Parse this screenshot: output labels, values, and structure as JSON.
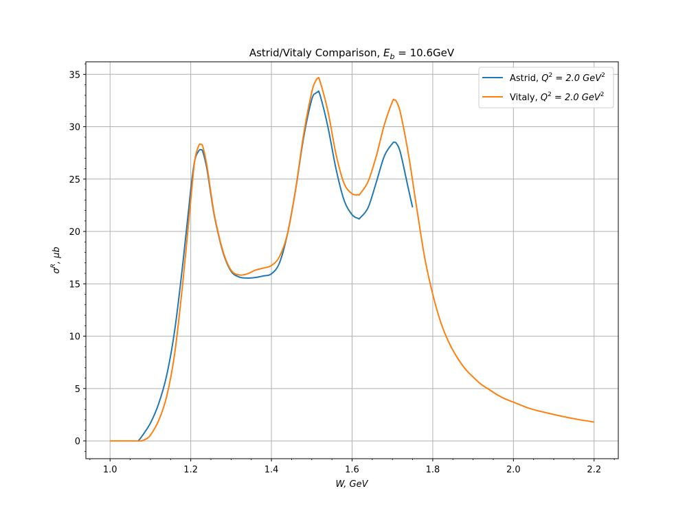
{
  "chart_data": {
    "type": "line",
    "title_main": "Astrid/Vitaly Comparison, ",
    "title_math": "E",
    "title_sub": "b",
    "title_tail": " = 10.6GeV",
    "xlabel": "W, GeV",
    "ylabel": "σ",
    "ylabel_sup": "R",
    "ylabel_tail": ", μb",
    "xlim": [
      0.94,
      2.26
    ],
    "ylim": [
      -1.7,
      36.2
    ],
    "grid": true,
    "legend_position": "top-right",
    "x_ticks": [
      1.0,
      1.2,
      1.4,
      1.6,
      1.8,
      2.0,
      2.2
    ],
    "x_tick_labels": [
      "1.0",
      "1.2",
      "1.4",
      "1.6",
      "1.8",
      "2.0",
      "2.2"
    ],
    "y_ticks": [
      0,
      5,
      10,
      15,
      20,
      25,
      30,
      35
    ],
    "y_tick_labels": [
      "0",
      "5",
      "10",
      "15",
      "20",
      "25",
      "30",
      "35"
    ],
    "series": [
      {
        "name": "Astrid, ",
        "name_math": "Q",
        "name_sup": "2",
        "name_tail": " = 2.0 GeV",
        "name_tail_sup": "2",
        "color": "#1f77b4",
        "x": [
          1.07,
          1.08,
          1.1,
          1.12,
          1.14,
          1.16,
          1.18,
          1.2,
          1.21,
          1.22,
          1.225,
          1.23,
          1.24,
          1.25,
          1.26,
          1.28,
          1.3,
          1.32,
          1.34,
          1.36,
          1.38,
          1.4,
          1.42,
          1.44,
          1.46,
          1.48,
          1.5,
          1.51,
          1.515,
          1.52,
          1.54,
          1.56,
          1.58,
          1.6,
          1.615,
          1.62,
          1.64,
          1.66,
          1.68,
          1.7,
          1.705,
          1.71,
          1.72,
          1.74,
          1.75
        ],
        "y": [
          0.0,
          0.5,
          1.7,
          3.5,
          6.2,
          10.5,
          16.8,
          24.0,
          26.8,
          27.7,
          27.8,
          27.6,
          26.0,
          23.5,
          21.2,
          18.0,
          16.2,
          15.65,
          15.55,
          15.6,
          15.75,
          15.95,
          17.0,
          19.8,
          24.0,
          29.0,
          32.6,
          33.2,
          33.3,
          33.1,
          30.0,
          26.0,
          23.0,
          21.6,
          21.25,
          21.3,
          22.3,
          24.7,
          27.2,
          28.4,
          28.5,
          28.4,
          27.5,
          24.0,
          22.3
        ]
      },
      {
        "name": "Vitaly, ",
        "name_math": "Q",
        "name_sup": "2",
        "name_tail": " = 2.0 GeV",
        "name_tail_sup": "2",
        "color": "#ff7f0e",
        "x": [
          1.0,
          1.02,
          1.04,
          1.06,
          1.077,
          1.09,
          1.1,
          1.12,
          1.14,
          1.16,
          1.18,
          1.2,
          1.21,
          1.22,
          1.225,
          1.23,
          1.24,
          1.25,
          1.26,
          1.28,
          1.3,
          1.32,
          1.34,
          1.36,
          1.38,
          1.4,
          1.42,
          1.44,
          1.46,
          1.48,
          1.5,
          1.51,
          1.515,
          1.52,
          1.54,
          1.56,
          1.58,
          1.6,
          1.615,
          1.62,
          1.64,
          1.66,
          1.68,
          1.7,
          1.705,
          1.71,
          1.72,
          1.74,
          1.76,
          1.78,
          1.8,
          1.82,
          1.84,
          1.86,
          1.88,
          1.9,
          1.92,
          1.94,
          1.96,
          1.98,
          2.0,
          2.04,
          2.08,
          2.12,
          2.16,
          2.2
        ],
        "y": [
          0.0,
          0.0,
          0.0,
          0.0,
          0.0,
          0.2,
          0.55,
          1.9,
          4.2,
          8.3,
          15.0,
          23.0,
          26.8,
          28.2,
          28.3,
          28.1,
          26.3,
          23.7,
          21.3,
          18.1,
          16.3,
          15.85,
          15.95,
          16.3,
          16.5,
          16.75,
          17.6,
          19.8,
          24.0,
          29.3,
          33.3,
          34.4,
          34.6,
          34.4,
          31.5,
          27.4,
          24.6,
          23.6,
          23.5,
          23.6,
          24.8,
          27.2,
          30.2,
          32.4,
          32.55,
          32.4,
          31.3,
          27.3,
          22.3,
          17.5,
          14.0,
          11.3,
          9.4,
          8.0,
          6.9,
          6.1,
          5.4,
          4.9,
          4.4,
          4.0,
          3.7,
          3.1,
          2.7,
          2.35,
          2.05,
          1.8
        ]
      }
    ]
  }
}
